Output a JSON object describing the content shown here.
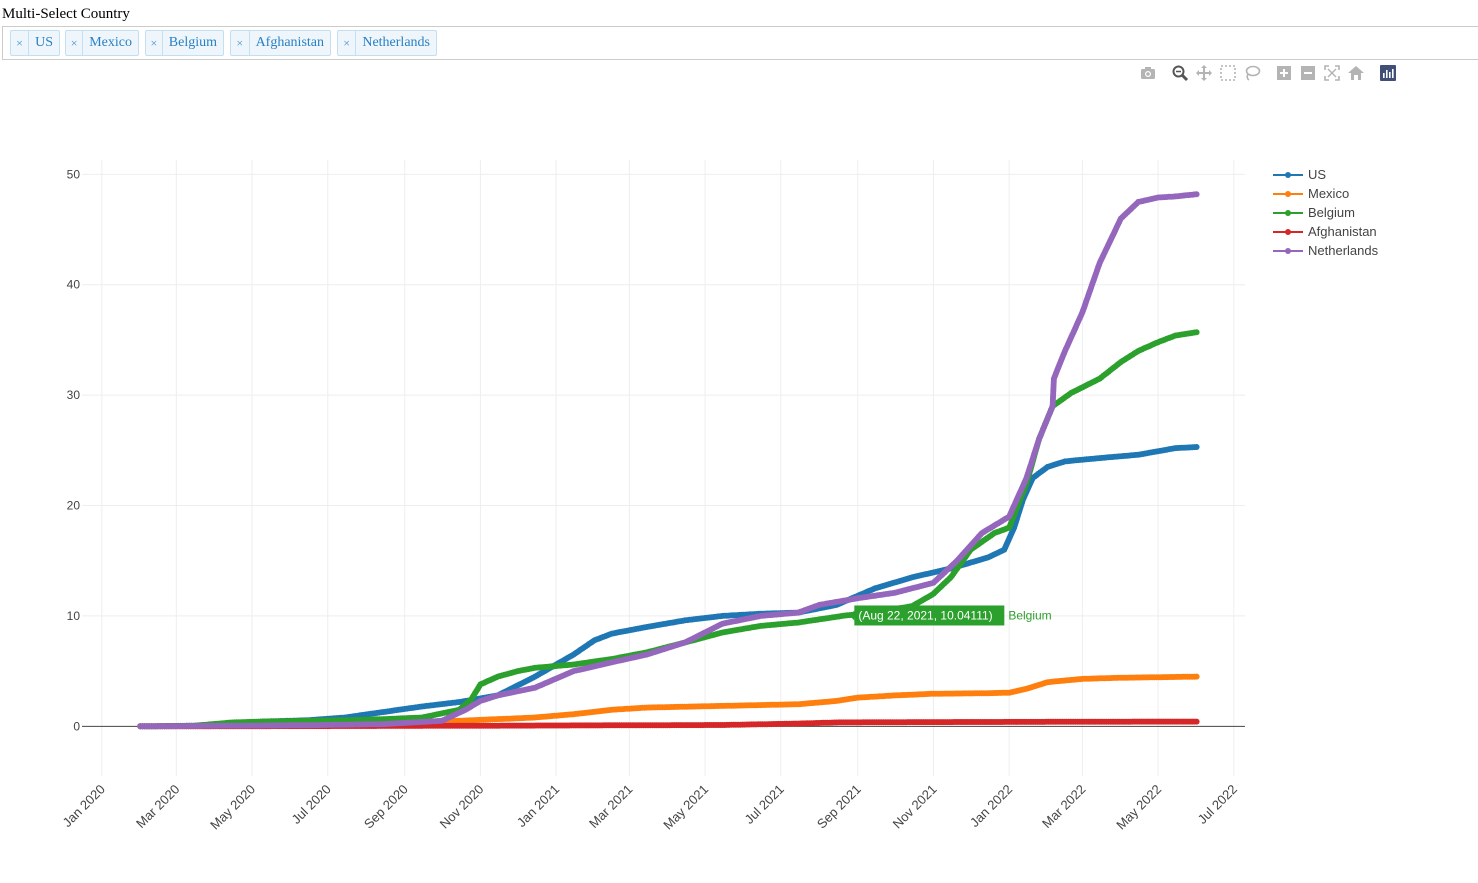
{
  "page_title": "Multi-Select Country",
  "selected_countries": [
    {
      "label": "US",
      "remove": "×"
    },
    {
      "label": "Mexico",
      "remove": "×"
    },
    {
      "label": "Belgium",
      "remove": "×"
    },
    {
      "label": "Afghanistan",
      "remove": "×"
    },
    {
      "label": "Netherlands",
      "remove": "×"
    }
  ],
  "modebar": [
    {
      "icon": "camera-icon",
      "title": "Download plot as a png"
    },
    {
      "icon": "zoom-icon",
      "title": "Zoom"
    },
    {
      "icon": "pan-icon",
      "title": "Pan"
    },
    {
      "icon": "box-select-icon",
      "title": "Box Select"
    },
    {
      "icon": "lasso-select-icon",
      "title": "Lasso Select"
    },
    {
      "icon": "zoom-in-icon",
      "title": "Zoom in"
    },
    {
      "icon": "zoom-out-icon",
      "title": "Zoom out"
    },
    {
      "icon": "autoscale-icon",
      "title": "Autoscale"
    },
    {
      "icon": "reset-axes-icon",
      "title": "Reset axes"
    },
    {
      "icon": "plotly-logo-icon",
      "title": "Produced with Plotly"
    }
  ],
  "chart_data": {
    "type": "line",
    "title": "",
    "xlabel": "",
    "ylabel": "",
    "xlim": [
      "2019-12-16",
      "2022-07-10"
    ],
    "ylim": [
      -4.5,
      51.3
    ],
    "x_ticks": [
      {
        "date": "2020-01-01",
        "label": "Jan 2020"
      },
      {
        "date": "2020-03-01",
        "label": "Mar 2020"
      },
      {
        "date": "2020-05-01",
        "label": "May 2020"
      },
      {
        "date": "2020-07-01",
        "label": "Jul 2020"
      },
      {
        "date": "2020-09-01",
        "label": "Sep 2020"
      },
      {
        "date": "2020-11-01",
        "label": "Nov 2020"
      },
      {
        "date": "2021-01-01",
        "label": "Jan 2021"
      },
      {
        "date": "2021-03-01",
        "label": "Mar 2021"
      },
      {
        "date": "2021-05-01",
        "label": "May 2021"
      },
      {
        "date": "2021-07-01",
        "label": "Jul 2021"
      },
      {
        "date": "2021-09-01",
        "label": "Sep 2021"
      },
      {
        "date": "2021-11-01",
        "label": "Nov 2021"
      },
      {
        "date": "2022-01-01",
        "label": "Jan 2022"
      },
      {
        "date": "2022-03-01",
        "label": "Mar 2022"
      },
      {
        "date": "2022-05-01",
        "label": "May 2022"
      },
      {
        "date": "2022-07-01",
        "label": "Jul 2022"
      }
    ],
    "y_ticks": [
      0,
      10,
      20,
      30,
      40,
      50
    ],
    "grid": true,
    "legend_position": "top-right",
    "series": [
      {
        "name": "US",
        "color": "#1f77b4",
        "points": [
          [
            "2020-02-01",
            0
          ],
          [
            "2020-03-15",
            0.05
          ],
          [
            "2020-04-15",
            0.3
          ],
          [
            "2020-05-15",
            0.45
          ],
          [
            "2020-06-15",
            0.55
          ],
          [
            "2020-07-15",
            0.8
          ],
          [
            "2020-08-15",
            1.3
          ],
          [
            "2020-09-15",
            1.8
          ],
          [
            "2020-10-15",
            2.2
          ],
          [
            "2020-11-15",
            2.8
          ],
          [
            "2020-12-15",
            4.5
          ],
          [
            "2021-01-15",
            6.5
          ],
          [
            "2021-02-01",
            7.8
          ],
          [
            "2021-02-15",
            8.4
          ],
          [
            "2021-03-15",
            9.0
          ],
          [
            "2021-04-15",
            9.6
          ],
          [
            "2021-05-15",
            10.0
          ],
          [
            "2021-06-15",
            10.2
          ],
          [
            "2021-07-15",
            10.3
          ],
          [
            "2021-08-15",
            11.0
          ],
          [
            "2021-09-15",
            12.5
          ],
          [
            "2021-10-15",
            13.5
          ],
          [
            "2021-11-15",
            14.3
          ],
          [
            "2021-12-15",
            15.3
          ],
          [
            "2021-12-28",
            16.0
          ],
          [
            "2022-01-05",
            18.0
          ],
          [
            "2022-01-12",
            20.5
          ],
          [
            "2022-01-20",
            22.5
          ],
          [
            "2022-02-01",
            23.5
          ],
          [
            "2022-02-15",
            24.0
          ],
          [
            "2022-03-15",
            24.3
          ],
          [
            "2022-04-15",
            24.6
          ],
          [
            "2022-05-15",
            25.2
          ],
          [
            "2022-06-01",
            25.3
          ]
        ]
      },
      {
        "name": "Mexico",
        "color": "#ff7f0e",
        "points": [
          [
            "2020-02-01",
            0
          ],
          [
            "2020-04-15",
            0.02
          ],
          [
            "2020-06-15",
            0.1
          ],
          [
            "2020-08-15",
            0.3
          ],
          [
            "2020-10-15",
            0.5
          ],
          [
            "2020-12-15",
            0.8
          ],
          [
            "2021-01-15",
            1.1
          ],
          [
            "2021-02-15",
            1.5
          ],
          [
            "2021-03-15",
            1.7
          ],
          [
            "2021-05-15",
            1.85
          ],
          [
            "2021-07-15",
            2.0
          ],
          [
            "2021-08-15",
            2.3
          ],
          [
            "2021-09-01",
            2.6
          ],
          [
            "2021-10-01",
            2.8
          ],
          [
            "2021-11-01",
            2.95
          ],
          [
            "2021-12-15",
            3.0
          ],
          [
            "2022-01-01",
            3.05
          ],
          [
            "2022-01-15",
            3.4
          ],
          [
            "2022-02-01",
            4.0
          ],
          [
            "2022-03-01",
            4.3
          ],
          [
            "2022-04-01",
            4.4
          ],
          [
            "2022-06-01",
            4.5
          ]
        ]
      },
      {
        "name": "Belgium",
        "color": "#2ca02c",
        "points": [
          [
            "2020-02-01",
            0
          ],
          [
            "2020-03-15",
            0.05
          ],
          [
            "2020-04-15",
            0.35
          ],
          [
            "2020-05-15",
            0.45
          ],
          [
            "2020-06-15",
            0.5
          ],
          [
            "2020-07-15",
            0.55
          ],
          [
            "2020-08-15",
            0.65
          ],
          [
            "2020-09-15",
            0.8
          ],
          [
            "2020-10-15",
            1.5
          ],
          [
            "2020-10-25",
            2.5
          ],
          [
            "2020-11-01",
            3.8
          ],
          [
            "2020-11-15",
            4.5
          ],
          [
            "2020-12-01",
            5.0
          ],
          [
            "2020-12-15",
            5.3
          ],
          [
            "2021-01-15",
            5.6
          ],
          [
            "2021-02-15",
            6.1
          ],
          [
            "2021-03-15",
            6.7
          ],
          [
            "2021-04-15",
            7.6
          ],
          [
            "2021-05-15",
            8.5
          ],
          [
            "2021-06-15",
            9.1
          ],
          [
            "2021-07-15",
            9.4
          ],
          [
            "2021-08-22",
            10.04
          ],
          [
            "2021-09-15",
            10.3
          ],
          [
            "2021-10-15",
            10.9
          ],
          [
            "2021-11-01",
            12.0
          ],
          [
            "2021-11-15",
            13.5
          ],
          [
            "2021-12-01",
            16.0
          ],
          [
            "2021-12-20",
            17.5
          ],
          [
            "2022-01-01",
            18.0
          ],
          [
            "2022-01-15",
            22.0
          ],
          [
            "2022-01-25",
            26.0
          ],
          [
            "2022-02-05",
            29.0
          ],
          [
            "2022-02-20",
            30.2
          ],
          [
            "2022-03-15",
            31.5
          ],
          [
            "2022-04-01",
            33.0
          ],
          [
            "2022-04-15",
            34.0
          ],
          [
            "2022-05-01",
            34.8
          ],
          [
            "2022-05-15",
            35.4
          ],
          [
            "2022-06-01",
            35.7
          ]
        ]
      },
      {
        "name": "Afghanistan",
        "color": "#d62728",
        "points": [
          [
            "2020-02-01",
            0
          ],
          [
            "2020-06-15",
            0.02
          ],
          [
            "2020-10-15",
            0.05
          ],
          [
            "2021-01-15",
            0.08
          ],
          [
            "2021-05-15",
            0.12
          ],
          [
            "2021-07-15",
            0.25
          ],
          [
            "2021-08-15",
            0.35
          ],
          [
            "2021-10-15",
            0.38
          ],
          [
            "2022-01-15",
            0.4
          ],
          [
            "2022-03-15",
            0.42
          ],
          [
            "2022-06-01",
            0.43
          ]
        ]
      },
      {
        "name": "Netherlands",
        "color": "#9467bd",
        "points": [
          [
            "2020-02-01",
            0
          ],
          [
            "2020-04-15",
            0.05
          ],
          [
            "2020-06-15",
            0.1
          ],
          [
            "2020-08-15",
            0.2
          ],
          [
            "2020-10-01",
            0.5
          ],
          [
            "2020-10-20",
            1.5
          ],
          [
            "2020-11-01",
            2.3
          ],
          [
            "2020-11-15",
            2.8
          ],
          [
            "2020-12-15",
            3.5
          ],
          [
            "2021-01-15",
            5.0
          ],
          [
            "2021-02-15",
            5.8
          ],
          [
            "2021-03-15",
            6.5
          ],
          [
            "2021-04-15",
            7.6
          ],
          [
            "2021-05-15",
            9.3
          ],
          [
            "2021-06-15",
            10.0
          ],
          [
            "2021-07-15",
            10.3
          ],
          [
            "2021-08-01",
            11.0
          ],
          [
            "2021-09-01",
            11.6
          ],
          [
            "2021-10-01",
            12.1
          ],
          [
            "2021-11-01",
            13.0
          ],
          [
            "2021-11-20",
            15.0
          ],
          [
            "2021-12-10",
            17.5
          ],
          [
            "2022-01-01",
            19.0
          ],
          [
            "2022-01-15",
            22.5
          ],
          [
            "2022-01-25",
            26.0
          ],
          [
            "2022-02-05",
            29.0
          ],
          [
            "2022-02-06",
            31.5
          ],
          [
            "2022-02-15",
            34.0
          ],
          [
            "2022-03-01",
            37.5
          ],
          [
            "2022-03-15",
            42.0
          ],
          [
            "2022-04-01",
            46.0
          ],
          [
            "2022-04-15",
            47.5
          ],
          [
            "2022-05-01",
            47.9
          ],
          [
            "2022-05-15",
            48.0
          ],
          [
            "2022-06-01",
            48.2
          ]
        ]
      }
    ],
    "annotation": {
      "text": "(Aug 22, 2021, 10.04111)",
      "series": "Belgium",
      "x": "2021-08-22",
      "y": 10.04111
    }
  }
}
